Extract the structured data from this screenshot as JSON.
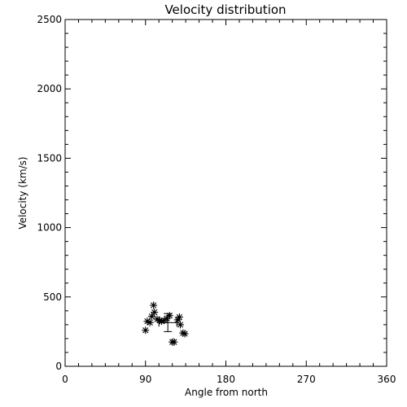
{
  "chart_data": {
    "type": "scatter",
    "title": "Velocity distribution",
    "xlabel": "Angle from north",
    "ylabel": "Velocity (km/s)",
    "xlim": [
      0,
      360
    ],
    "ylim": [
      0,
      2500
    ],
    "xticks": [
      0,
      90,
      180,
      270,
      360
    ],
    "xtick_labels": [
      "0",
      "90",
      "180",
      "270",
      "360"
    ],
    "yticks": [
      0,
      500,
      1000,
      1500,
      2000,
      2500
    ],
    "ytick_labels": [
      "0",
      "500",
      "1000",
      "1500",
      "2000",
      "2500"
    ],
    "grid": false,
    "marker": "asterisk",
    "points": [
      {
        "x": 90,
        "y": 260
      },
      {
        "x": 92,
        "y": 325
      },
      {
        "x": 95,
        "y": 315
      },
      {
        "x": 97,
        "y": 360
      },
      {
        "x": 99,
        "y": 440
      },
      {
        "x": 100,
        "y": 390
      },
      {
        "x": 103,
        "y": 340
      },
      {
        "x": 106,
        "y": 330
      },
      {
        "x": 108,
        "y": 325
      },
      {
        "x": 111,
        "y": 330
      },
      {
        "x": 114,
        "y": 345
      },
      {
        "x": 117,
        "y": 365
      },
      {
        "x": 120,
        "y": 175
      },
      {
        "x": 122,
        "y": 175
      },
      {
        "x": 126,
        "y": 335
      },
      {
        "x": 128,
        "y": 355
      },
      {
        "x": 129,
        "y": 300
      },
      {
        "x": 132,
        "y": 240
      },
      {
        "x": 134,
        "y": 235
      }
    ],
    "mean_with_error": {
      "x": 115,
      "y": 315,
      "x_range": [
        105,
        125
      ],
      "y_range": [
        250,
        380
      ]
    }
  }
}
